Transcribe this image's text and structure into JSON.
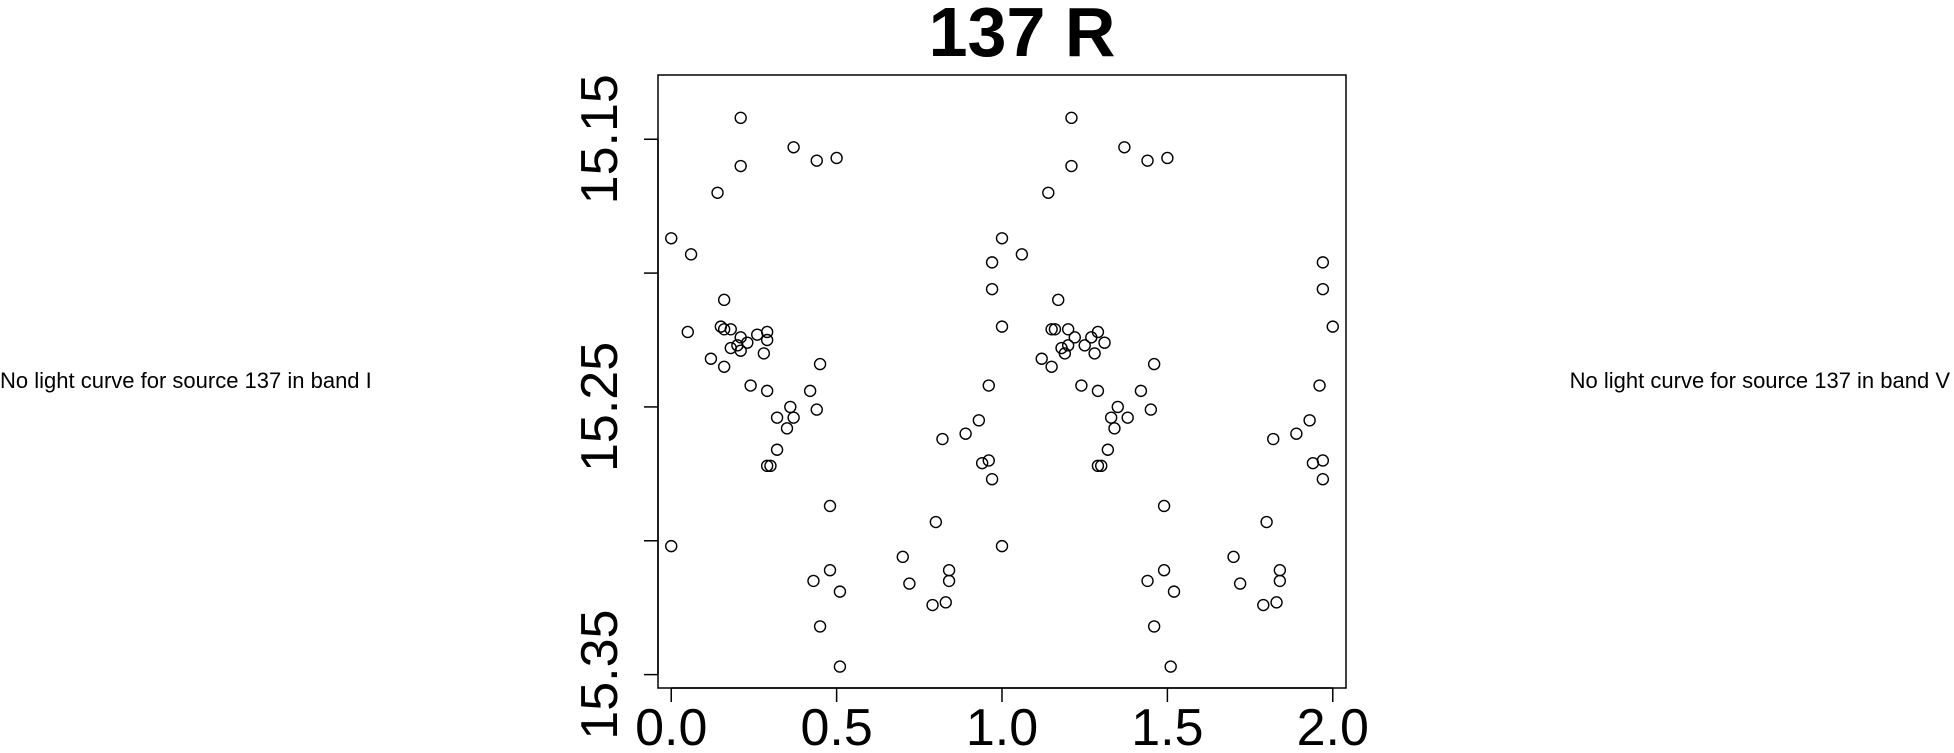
{
  "notes": {
    "left": "No light curve for source 137 in band I",
    "right": "No light curve for source 137 in band V"
  },
  "chart_data": {
    "type": "scatter",
    "title": "137 R",
    "xlabel": "",
    "ylabel": "",
    "xlim": [
      -0.04,
      2.04
    ],
    "ylim": [
      15.355,
      15.126
    ],
    "y_reversed": true,
    "x_ticks": [
      "0.0",
      "0.5",
      "1.0",
      "1.5",
      "2.0"
    ],
    "x_tick_values": [
      0.0,
      0.5,
      1.0,
      1.5,
      2.0
    ],
    "y_ticks": [
      "15.15",
      "15.25",
      "15.35"
    ],
    "y_tick_values": [
      15.15,
      15.25,
      15.35
    ],
    "y_minor_ticks": [
      15.2,
      15.3
    ],
    "grid": false,
    "legend": "none",
    "marker": "open-circle",
    "points": [
      [
        0.0,
        15.187
      ],
      [
        0.0,
        15.302
      ],
      [
        0.06,
        15.193
      ],
      [
        0.05,
        15.222
      ],
      [
        0.12,
        15.232
      ],
      [
        0.14,
        15.17
      ],
      [
        0.15,
        15.22
      ],
      [
        0.16,
        15.221
      ],
      [
        0.16,
        15.21
      ],
      [
        0.18,
        15.221
      ],
      [
        0.16,
        15.235
      ],
      [
        0.18,
        15.228
      ],
      [
        0.2,
        15.227
      ],
      [
        0.21,
        15.142
      ],
      [
        0.21,
        15.224
      ],
      [
        0.21,
        15.229
      ],
      [
        0.21,
        15.16
      ],
      [
        0.23,
        15.226
      ],
      [
        0.24,
        15.242
      ],
      [
        0.26,
        15.223
      ],
      [
        0.28,
        15.23
      ],
      [
        0.29,
        15.222
      ],
      [
        0.29,
        15.225
      ],
      [
        0.29,
        15.244
      ],
      [
        0.29,
        15.272
      ],
      [
        0.3,
        15.272
      ],
      [
        0.32,
        15.254
      ],
      [
        0.32,
        15.266
      ],
      [
        0.35,
        15.258
      ],
      [
        0.36,
        15.25
      ],
      [
        0.37,
        15.153
      ],
      [
        0.37,
        15.254
      ],
      [
        0.42,
        15.244
      ],
      [
        0.43,
        15.315
      ],
      [
        0.44,
        15.158
      ],
      [
        0.44,
        15.251
      ],
      [
        0.45,
        15.234
      ],
      [
        0.45,
        15.332
      ],
      [
        0.48,
        15.287
      ],
      [
        0.48,
        15.311
      ],
      [
        0.5,
        15.157
      ],
      [
        0.51,
        15.347
      ],
      [
        0.51,
        15.319
      ],
      [
        0.7,
        15.306
      ],
      [
        0.72,
        15.316
      ],
      [
        0.79,
        15.324
      ],
      [
        0.8,
        15.293
      ],
      [
        0.82,
        15.262
      ],
      [
        0.83,
        15.323
      ],
      [
        0.84,
        15.311
      ],
      [
        0.84,
        15.315
      ],
      [
        0.89,
        15.26
      ],
      [
        0.93,
        15.255
      ],
      [
        0.94,
        15.271
      ],
      [
        0.96,
        15.27
      ],
      [
        0.96,
        15.242
      ],
      [
        0.97,
        15.277
      ],
      [
        0.97,
        15.196
      ],
      [
        0.97,
        15.206
      ],
      [
        1.0,
        15.187
      ],
      [
        1.0,
        15.22
      ],
      [
        1.0,
        15.302
      ],
      [
        1.06,
        15.193
      ],
      [
        1.12,
        15.232
      ],
      [
        1.14,
        15.17
      ],
      [
        1.15,
        15.221
      ],
      [
        1.15,
        15.235
      ],
      [
        1.16,
        15.221
      ],
      [
        1.17,
        15.21
      ],
      [
        1.18,
        15.228
      ],
      [
        1.19,
        15.23
      ],
      [
        1.2,
        15.221
      ],
      [
        1.2,
        15.227
      ],
      [
        1.21,
        15.142
      ],
      [
        1.21,
        15.16
      ],
      [
        1.22,
        15.224
      ],
      [
        1.24,
        15.242
      ],
      [
        1.25,
        15.227
      ],
      [
        1.27,
        15.224
      ],
      [
        1.28,
        15.23
      ],
      [
        1.29,
        15.222
      ],
      [
        1.29,
        15.244
      ],
      [
        1.29,
        15.272
      ],
      [
        1.3,
        15.272
      ],
      [
        1.31,
        15.226
      ],
      [
        1.32,
        15.266
      ],
      [
        1.33,
        15.254
      ],
      [
        1.34,
        15.258
      ],
      [
        1.35,
        15.25
      ],
      [
        1.37,
        15.153
      ],
      [
        1.38,
        15.254
      ],
      [
        1.42,
        15.244
      ],
      [
        1.44,
        15.158
      ],
      [
        1.44,
        15.315
      ],
      [
        1.45,
        15.251
      ],
      [
        1.46,
        15.234
      ],
      [
        1.46,
        15.332
      ],
      [
        1.49,
        15.287
      ],
      [
        1.49,
        15.311
      ],
      [
        1.5,
        15.157
      ],
      [
        1.51,
        15.347
      ],
      [
        1.52,
        15.319
      ],
      [
        1.7,
        15.306
      ],
      [
        1.72,
        15.316
      ],
      [
        1.79,
        15.324
      ],
      [
        1.8,
        15.293
      ],
      [
        1.82,
        15.262
      ],
      [
        1.83,
        15.323
      ],
      [
        1.84,
        15.311
      ],
      [
        1.84,
        15.315
      ],
      [
        1.89,
        15.26
      ],
      [
        1.93,
        15.255
      ],
      [
        1.94,
        15.271
      ],
      [
        1.96,
        15.242
      ],
      [
        1.97,
        15.196
      ],
      [
        1.97,
        15.206
      ],
      [
        1.97,
        15.27
      ],
      [
        1.97,
        15.277
      ],
      [
        2.0,
        15.22
      ]
    ]
  }
}
